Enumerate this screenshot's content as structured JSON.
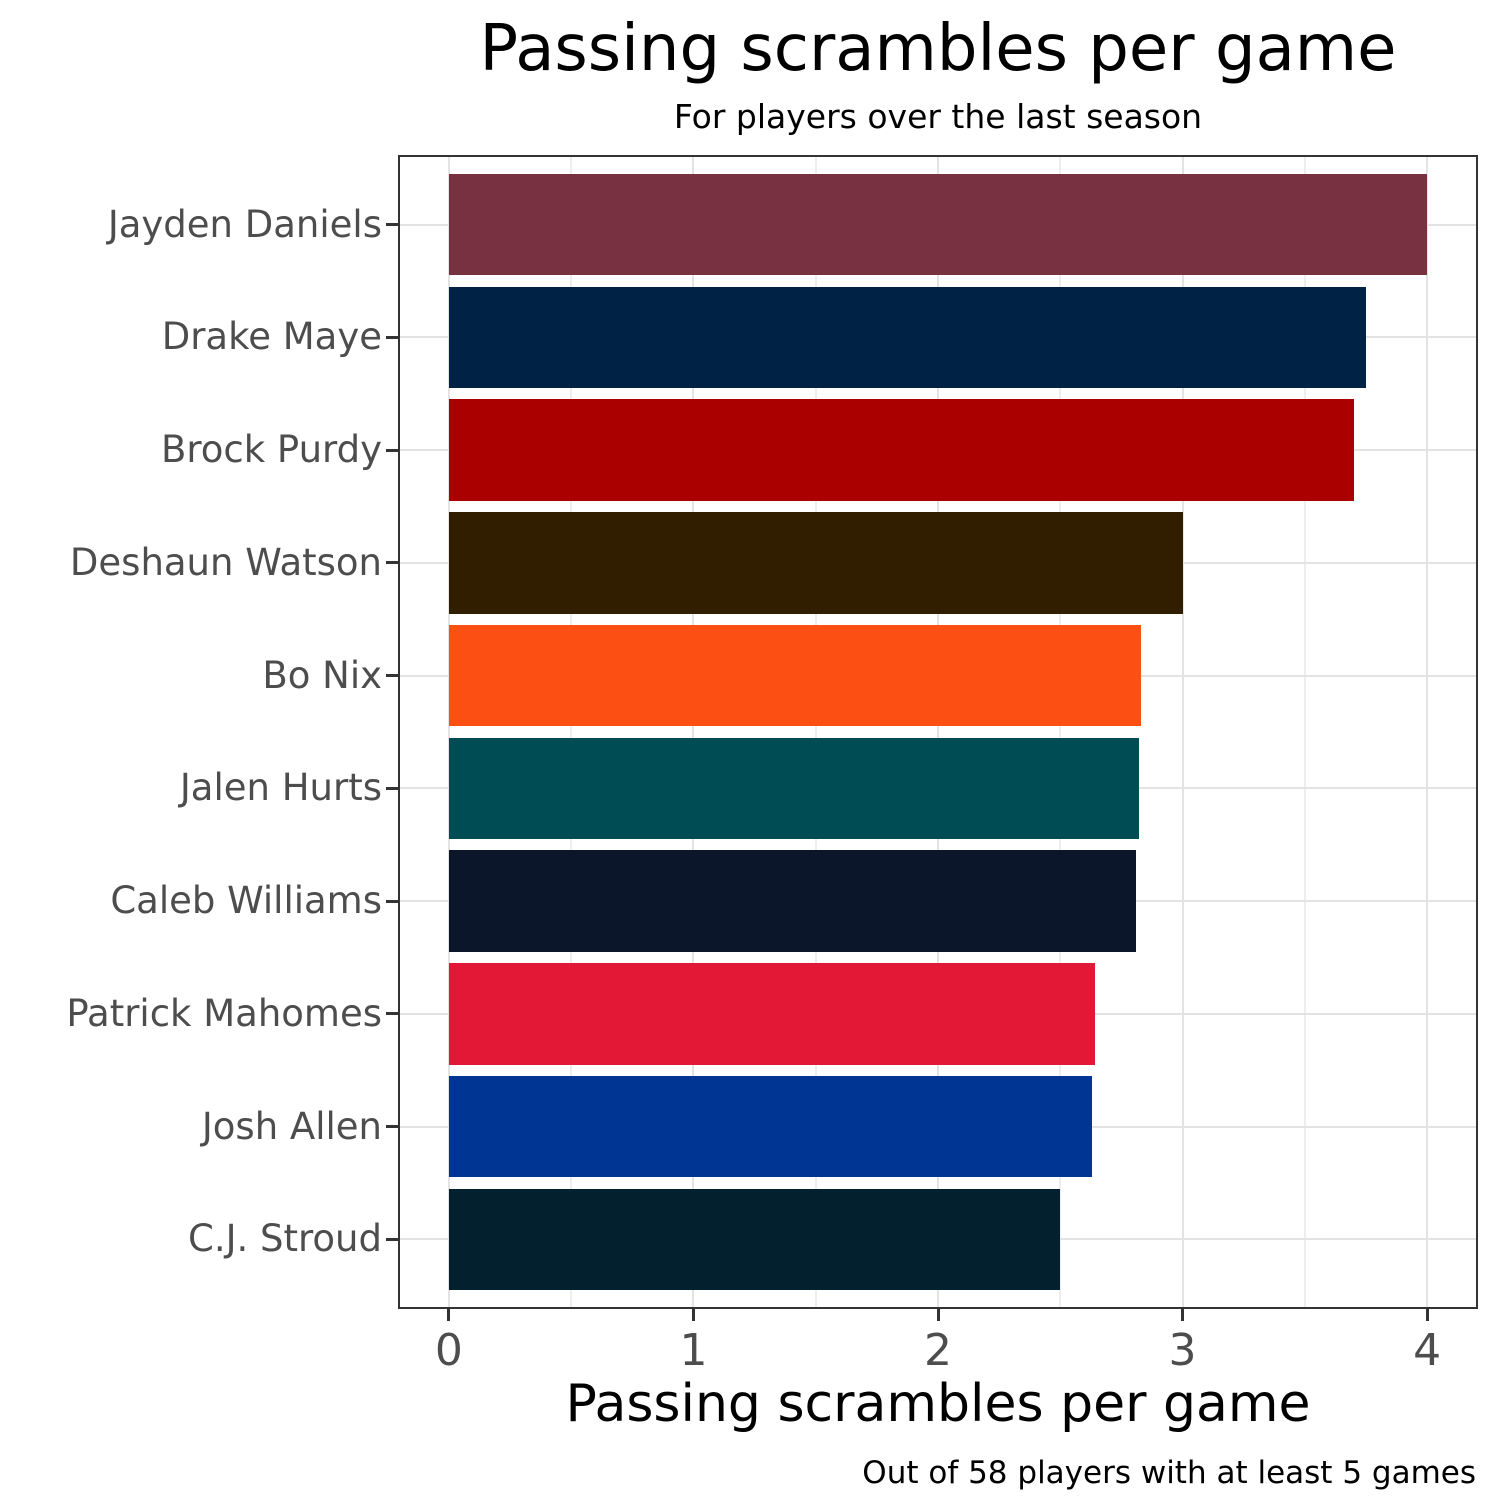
{
  "chart_data": {
    "type": "bar",
    "orientation": "horizontal",
    "title": "Passing scrambles per game",
    "subtitle": "For players over the last season",
    "xlabel": "Passing scrambles per game",
    "caption": "Out of 58 players with at least 5 games",
    "categories": [
      "Jayden Daniels",
      "Drake Maye",
      "Brock Purdy",
      "Deshaun Watson",
      "Bo Nix",
      "Jalen Hurts",
      "Caleb Williams",
      "Patrick Mahomes",
      "Josh Allen",
      "C.J. Stroud"
    ],
    "values": [
      4.0,
      3.75,
      3.7,
      3.0,
      2.83,
      2.82,
      2.81,
      2.64,
      2.63,
      2.5
    ],
    "bar_colors": [
      "#773141",
      "#002244",
      "#AA0000",
      "#311D00",
      "#FB4F14",
      "#004C54",
      "#0B162A",
      "#E31837",
      "#003594",
      "#03202F"
    ],
    "xlim": [
      0,
      4
    ],
    "x_ticks": [
      0,
      1,
      2,
      3,
      4
    ],
    "x_tick_labels": [
      "0",
      "1",
      "2",
      "3",
      "4"
    ],
    "x_minor_ticks": [
      0.5,
      1.5,
      2.5,
      3.5
    ],
    "grid": "vertical major+minor, horizontal major at category centers",
    "legend": "none",
    "colors": {
      "background": "#ffffff",
      "panel_border": "#333333",
      "grid_major": "#e3e3e3",
      "grid_minor": "#eeeeee",
      "axis_text": "#4d4d4d",
      "tick_mark": "#333333",
      "title_text": "#000000"
    }
  }
}
